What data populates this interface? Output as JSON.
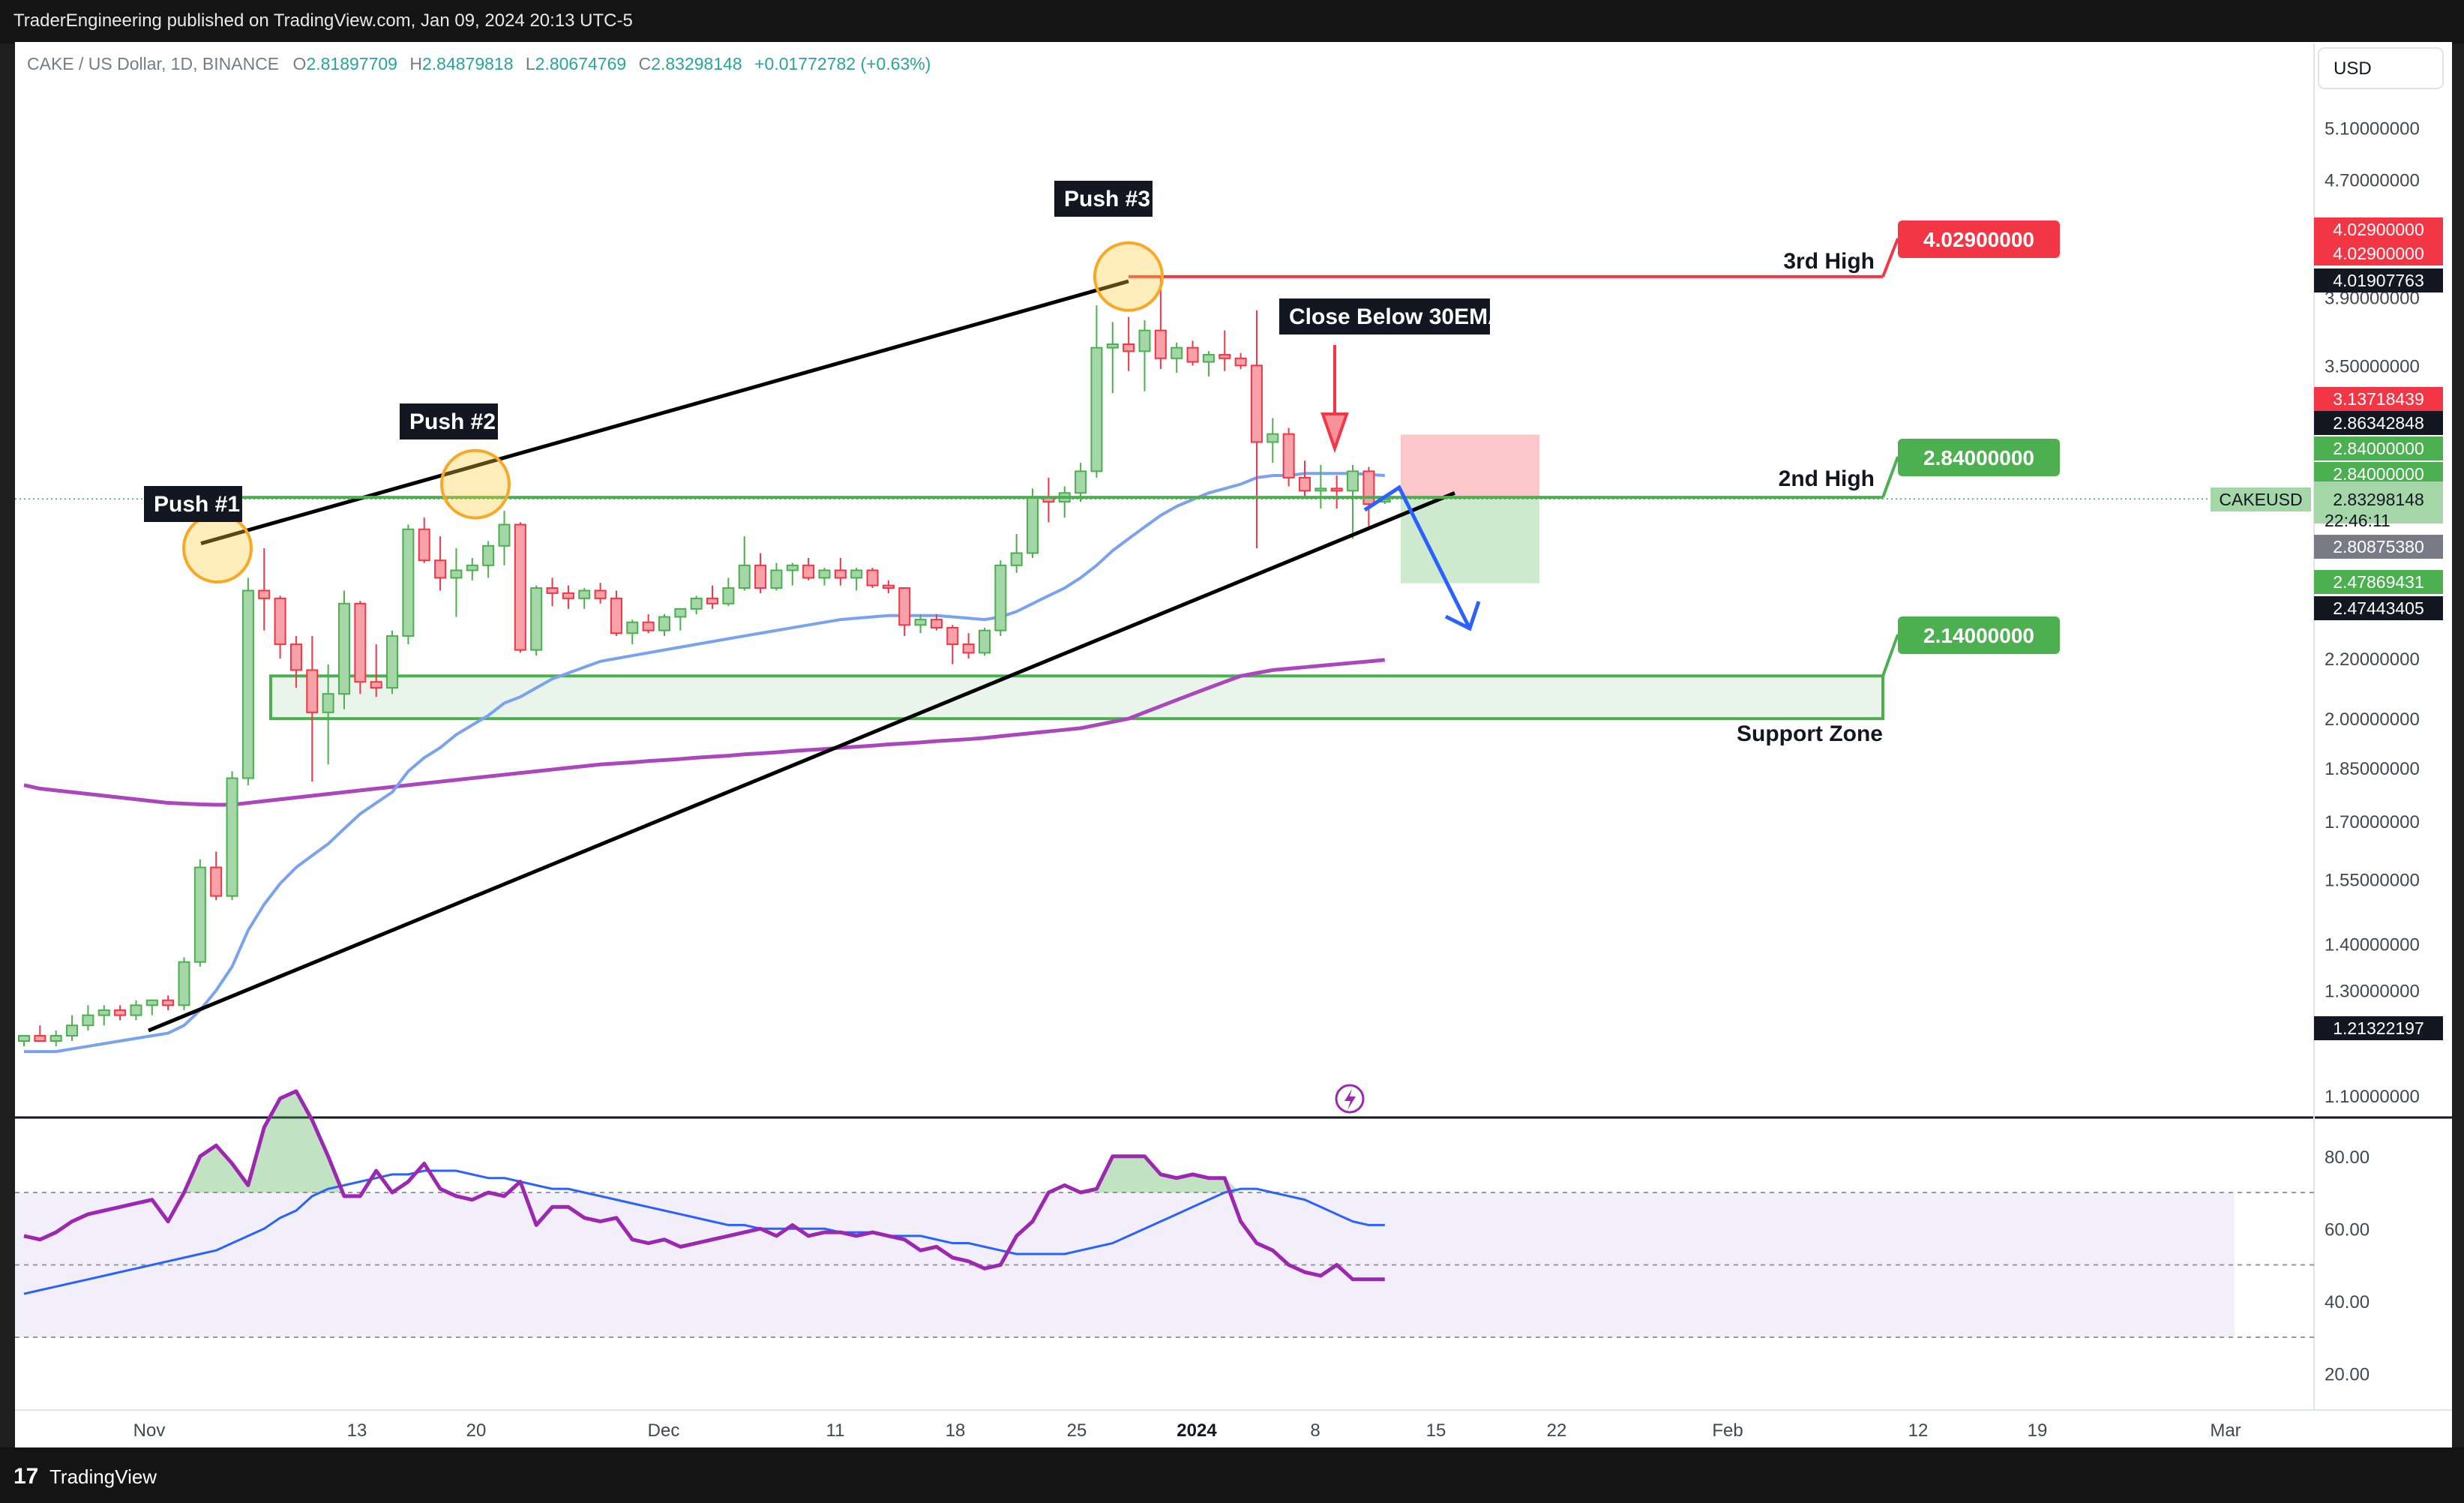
{
  "publisher_line": "TraderEngineering published on TradingView.com, Jan 09, 2024 20:13 UTC-5",
  "brand": "TradingView",
  "brand_logo": "17",
  "legend": {
    "symbol": "CAKE / US Dollar, 1D, BINANCE",
    "o_label": "O",
    "o_value": "2.81897709",
    "h_label": "H",
    "h_value": "2.84879818",
    "l_label": "L",
    "l_value": "2.80674769",
    "c_label": "C",
    "c_value": "2.83298148",
    "change": "+0.01772782 (+0.63%)"
  },
  "currency_button": "USD",
  "symbol_tag": "CAKEUSD",
  "countdown": "22:46:11",
  "colors": {
    "up": "#4caf50",
    "up_fill": "#a5d6a7",
    "down": "#f23645",
    "down_fill": "#f7a1a8",
    "ema30": "#7aa2ee",
    "ema200": "#ab47bc",
    "rsi": "#9c27b0",
    "rsi_ma": "#2962ff",
    "label_green": "#4caf50",
    "label_red": "#f23645",
    "dark": "#131722"
  },
  "chart_data": {
    "type": "candlestick",
    "price_scale": "log",
    "ylim": [
      1.05,
      5.4
    ],
    "x_ticks": [
      "Nov",
      "13",
      "20",
      "Dec",
      "11",
      "18",
      "25",
      "2024",
      "8",
      "15",
      "22",
      "Feb",
      "12",
      "19",
      "Mar"
    ],
    "y_ticks": [
      "5.10000000",
      "4.70000000",
      "3.90000000",
      "3.50000000",
      "2.20000000",
      "2.00000000",
      "1.85000000",
      "1.70000000",
      "1.55000000",
      "1.40000000",
      "1.30000000",
      "1.10000000"
    ],
    "candles": [
      [
        1.2,
        1.21,
        1.19,
        1.21
      ],
      [
        1.21,
        1.23,
        1.2,
        1.2
      ],
      [
        1.2,
        1.22,
        1.19,
        1.21
      ],
      [
        1.21,
        1.25,
        1.2,
        1.23
      ],
      [
        1.23,
        1.27,
        1.22,
        1.25
      ],
      [
        1.25,
        1.27,
        1.23,
        1.26
      ],
      [
        1.26,
        1.27,
        1.24,
        1.25
      ],
      [
        1.25,
        1.28,
        1.24,
        1.27
      ],
      [
        1.27,
        1.28,
        1.25,
        1.28
      ],
      [
        1.28,
        1.29,
        1.26,
        1.27
      ],
      [
        1.27,
        1.37,
        1.26,
        1.36
      ],
      [
        1.36,
        1.6,
        1.35,
        1.58
      ],
      [
        1.58,
        1.62,
        1.5,
        1.51
      ],
      [
        1.51,
        1.84,
        1.5,
        1.82
      ],
      [
        1.82,
        2.5,
        1.8,
        2.45
      ],
      [
        2.45,
        2.62,
        2.3,
        2.42
      ],
      [
        2.42,
        2.43,
        2.2,
        2.25
      ],
      [
        2.25,
        2.28,
        2.1,
        2.16
      ],
      [
        2.16,
        2.28,
        1.81,
        2.02
      ],
      [
        2.02,
        2.18,
        1.86,
        2.08
      ],
      [
        2.08,
        2.45,
        2.03,
        2.4
      ],
      [
        2.4,
        2.41,
        2.08,
        2.12
      ],
      [
        2.12,
        2.25,
        2.07,
        2.1
      ],
      [
        2.1,
        2.3,
        2.08,
        2.28
      ],
      [
        2.28,
        2.72,
        2.25,
        2.7
      ],
      [
        2.7,
        2.75,
        2.56,
        2.57
      ],
      [
        2.57,
        2.67,
        2.45,
        2.5
      ],
      [
        2.5,
        2.62,
        2.35,
        2.53
      ],
      [
        2.53,
        2.58,
        2.49,
        2.55
      ],
      [
        2.55,
        2.65,
        2.5,
        2.63
      ],
      [
        2.63,
        2.78,
        2.55,
        2.72
      ],
      [
        2.72,
        2.73,
        2.22,
        2.23
      ],
      [
        2.23,
        2.47,
        2.21,
        2.46
      ],
      [
        2.46,
        2.5,
        2.39,
        2.44
      ],
      [
        2.44,
        2.47,
        2.38,
        2.42
      ],
      [
        2.42,
        2.46,
        2.38,
        2.45
      ],
      [
        2.45,
        2.48,
        2.4,
        2.42
      ],
      [
        2.42,
        2.45,
        2.28,
        2.29
      ],
      [
        2.29,
        2.34,
        2.25,
        2.33
      ],
      [
        2.33,
        2.36,
        2.29,
        2.3
      ],
      [
        2.3,
        2.36,
        2.28,
        2.35
      ],
      [
        2.35,
        2.38,
        2.3,
        2.38
      ],
      [
        2.38,
        2.43,
        2.36,
        2.42
      ],
      [
        2.42,
        2.47,
        2.38,
        2.4
      ],
      [
        2.4,
        2.5,
        2.39,
        2.46
      ],
      [
        2.46,
        2.67,
        2.45,
        2.55
      ],
      [
        2.55,
        2.6,
        2.44,
        2.46
      ],
      [
        2.46,
        2.56,
        2.45,
        2.53
      ],
      [
        2.53,
        2.56,
        2.47,
        2.55
      ],
      [
        2.55,
        2.58,
        2.49,
        2.5
      ],
      [
        2.5,
        2.54,
        2.47,
        2.53
      ],
      [
        2.53,
        2.58,
        2.47,
        2.5
      ],
      [
        2.5,
        2.54,
        2.45,
        2.53
      ],
      [
        2.53,
        2.54,
        2.46,
        2.47
      ],
      [
        2.47,
        2.49,
        2.44,
        2.46
      ],
      [
        2.46,
        2.46,
        2.28,
        2.32
      ],
      [
        2.32,
        2.36,
        2.29,
        2.34
      ],
      [
        2.34,
        2.36,
        2.3,
        2.31
      ],
      [
        2.31,
        2.32,
        2.18,
        2.25
      ],
      [
        2.25,
        2.29,
        2.2,
        2.22
      ],
      [
        2.22,
        2.31,
        2.21,
        2.3
      ],
      [
        2.3,
        2.57,
        2.28,
        2.55
      ],
      [
        2.55,
        2.68,
        2.52,
        2.6
      ],
      [
        2.6,
        2.88,
        2.58,
        2.84
      ],
      [
        2.84,
        2.93,
        2.73,
        2.82
      ],
      [
        2.82,
        2.89,
        2.75,
        2.86
      ],
      [
        2.86,
        3.0,
        2.82,
        2.96
      ],
      [
        2.96,
        3.85,
        2.93,
        3.6
      ],
      [
        3.6,
        3.75,
        3.35,
        3.62
      ],
      [
        3.62,
        3.78,
        3.47,
        3.58
      ],
      [
        3.58,
        3.76,
        3.36,
        3.7
      ],
      [
        3.7,
        4.03,
        3.48,
        3.54
      ],
      [
        3.54,
        3.63,
        3.46,
        3.6
      ],
      [
        3.6,
        3.64,
        3.5,
        3.52
      ],
      [
        3.52,
        3.58,
        3.44,
        3.56
      ],
      [
        3.56,
        3.7,
        3.47,
        3.54
      ],
      [
        3.54,
        3.57,
        3.48,
        3.5
      ],
      [
        3.5,
        3.82,
        2.62,
        3.1
      ],
      [
        3.1,
        3.22,
        3.0,
        3.14
      ],
      [
        3.14,
        3.17,
        2.89,
        2.93
      ],
      [
        2.93,
        3.01,
        2.84,
        2.87
      ],
      [
        2.87,
        2.99,
        2.79,
        2.88
      ],
      [
        2.88,
        2.94,
        2.79,
        2.87
      ],
      [
        2.87,
        2.99,
        2.66,
        2.96
      ],
      [
        2.96,
        2.98,
        2.7,
        2.81
      ],
      [
        2.82,
        2.85,
        2.81,
        2.83
      ]
    ],
    "series": [
      {
        "name": "30EMA",
        "values": [
          1.18,
          1.18,
          1.18,
          1.185,
          1.19,
          1.195,
          1.2,
          1.205,
          1.21,
          1.215,
          1.23,
          1.26,
          1.3,
          1.35,
          1.43,
          1.49,
          1.54,
          1.58,
          1.61,
          1.64,
          1.68,
          1.72,
          1.75,
          1.78,
          1.84,
          1.88,
          1.91,
          1.95,
          1.98,
          2.01,
          2.05,
          2.07,
          2.1,
          2.13,
          2.15,
          2.17,
          2.19,
          2.2,
          2.21,
          2.22,
          2.23,
          2.24,
          2.25,
          2.26,
          2.27,
          2.28,
          2.29,
          2.3,
          2.31,
          2.32,
          2.33,
          2.34,
          2.345,
          2.35,
          2.355,
          2.355,
          2.355,
          2.355,
          2.35,
          2.345,
          2.34,
          2.35,
          2.37,
          2.4,
          2.43,
          2.46,
          2.5,
          2.55,
          2.61,
          2.66,
          2.71,
          2.76,
          2.8,
          2.83,
          2.86,
          2.88,
          2.9,
          2.93,
          2.94,
          2.94,
          2.95,
          2.95,
          2.95,
          2.95,
          2.945,
          2.94
        ]
      },
      {
        "name": "200MA",
        "values": [
          1.8,
          1.79,
          1.785,
          1.78,
          1.775,
          1.77,
          1.765,
          1.76,
          1.755,
          1.75,
          1.748,
          1.746,
          1.745,
          1.745,
          1.75,
          1.755,
          1.76,
          1.765,
          1.77,
          1.775,
          1.78,
          1.785,
          1.79,
          1.795,
          1.8,
          1.805,
          1.81,
          1.815,
          1.82,
          1.825,
          1.83,
          1.835,
          1.84,
          1.845,
          1.85,
          1.855,
          1.86,
          1.863,
          1.866,
          1.87,
          1.873,
          1.876,
          1.88,
          1.883,
          1.886,
          1.89,
          1.893,
          1.896,
          1.9,
          1.903,
          1.906,
          1.91,
          1.913,
          1.916,
          1.92,
          1.923,
          1.926,
          1.93,
          1.933,
          1.936,
          1.94,
          1.945,
          1.95,
          1.955,
          1.96,
          1.965,
          1.97,
          1.98,
          1.99,
          2.0,
          2.02,
          2.04,
          2.06,
          2.08,
          2.1,
          2.12,
          2.14,
          2.15,
          2.16,
          2.165,
          2.17,
          2.175,
          2.18,
          2.185,
          2.19,
          2.195
        ]
      },
      {
        "name": "RSI",
        "values": [
          58,
          57,
          59,
          62,
          64,
          65,
          66,
          67,
          68,
          62,
          70,
          80,
          83,
          78,
          72,
          88,
          96,
          98,
          90,
          80,
          69,
          69,
          76,
          70,
          73,
          78,
          71,
          69,
          68,
          70,
          69,
          73,
          61,
          66,
          66,
          63,
          62,
          63,
          57,
          56,
          57,
          55,
          56,
          57,
          58,
          59,
          60,
          58,
          61,
          58,
          59,
          59,
          58,
          59,
          58,
          57,
          54,
          55,
          52,
          51,
          49,
          50,
          58,
          62,
          70,
          72,
          70,
          71,
          80,
          80,
          80,
          75,
          74,
          75,
          74,
          74,
          62,
          56,
          54,
          50,
          48,
          47,
          50,
          46,
          46,
          46
        ]
      },
      {
        "name": "RSI-MA",
        "values": [
          42,
          43,
          44,
          45,
          46,
          47,
          48,
          49,
          50,
          51,
          52,
          53,
          54,
          56,
          58,
          60,
          63,
          65,
          69,
          71,
          72,
          73,
          74,
          75,
          75,
          76,
          76,
          76,
          75,
          74,
          74,
          73,
          72,
          71,
          71,
          70,
          69,
          68,
          67,
          66,
          65,
          64,
          63,
          62,
          61,
          61,
          60,
          60,
          60,
          60,
          60,
          59,
          59,
          59,
          58,
          58,
          58,
          57,
          56,
          56,
          55,
          54,
          53,
          53,
          53,
          53,
          54,
          55,
          56,
          58,
          60,
          62,
          64,
          66,
          68,
          70,
          71,
          71,
          70,
          69,
          68,
          66,
          64,
          62,
          61,
          61
        ]
      }
    ],
    "rsi_ticks": [
      "80.00",
      "60.00",
      "40.00",
      "20.00"
    ],
    "rsi_bands": [
      70,
      50,
      30
    ],
    "levels": [
      {
        "name": "3rd High",
        "price": 4.029,
        "label": "4.02900000",
        "color": "red"
      },
      {
        "name": "2nd High",
        "price": 2.84,
        "label": "2.84000000",
        "color": "green"
      },
      {
        "name": "Support Zone",
        "price": 2.14,
        "label": "2.14000000",
        "color": "green"
      }
    ],
    "annotations": [
      "Push #1",
      "Push #2",
      "Push #3",
      "Close Below 30EMA"
    ],
    "right_scale_labels": [
      {
        "text": "4.02900000",
        "kind": "red"
      },
      {
        "text": "4.02900000",
        "kind": "red"
      },
      {
        "text": "4.01907763",
        "kind": "dark"
      },
      {
        "text": "3.13718439",
        "kind": "red"
      },
      {
        "text": "2.86342848",
        "kind": "dark"
      },
      {
        "text": "2.84000000",
        "kind": "green"
      },
      {
        "text": "2.84000000",
        "kind": "green"
      },
      {
        "text": "2.83298148",
        "kind": "last"
      },
      {
        "text": "2.80875380",
        "kind": "gray"
      },
      {
        "text": "2.47869431",
        "kind": "green"
      },
      {
        "text": "2.47443405",
        "kind": "dark"
      },
      {
        "text": "1.21322197",
        "kind": "dark"
      }
    ]
  }
}
